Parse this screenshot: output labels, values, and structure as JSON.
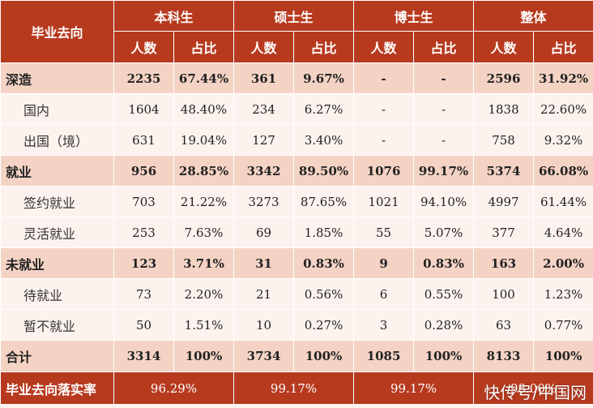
{
  "header": {
    "row_label": "毕业去向",
    "groups": [
      "本科生",
      "硕士生",
      "博士生",
      "整体"
    ],
    "sub": [
      "人数",
      "占比"
    ]
  },
  "rows": [
    {
      "label": "深造",
      "type": "cat",
      "cells": [
        "2235",
        "67.44%",
        "361",
        "9.67%",
        "-",
        "-",
        "2596",
        "31.92%"
      ]
    },
    {
      "label": "国内",
      "type": "sub",
      "cells": [
        "1604",
        "48.40%",
        "234",
        "6.27%",
        "-",
        "-",
        "1838",
        "22.60%"
      ]
    },
    {
      "label": "出国（境）",
      "type": "sub",
      "cells": [
        "631",
        "19.04%",
        "127",
        "3.40%",
        "-",
        "-",
        "758",
        "9.32%"
      ]
    },
    {
      "label": "就业",
      "type": "cat",
      "cells": [
        "956",
        "28.85%",
        "3342",
        "89.50%",
        "1076",
        "99.17%",
        "5374",
        "66.08%"
      ]
    },
    {
      "label": "签约就业",
      "type": "sub",
      "cells": [
        "703",
        "21.22%",
        "3273",
        "87.65%",
        "1021",
        "94.10%",
        "4997",
        "61.44%"
      ]
    },
    {
      "label": "灵活就业",
      "type": "sub",
      "cells": [
        "253",
        "7.63%",
        "69",
        "1.85%",
        "55",
        "5.07%",
        "377",
        "4.64%"
      ]
    },
    {
      "label": "未就业",
      "type": "cat",
      "cells": [
        "123",
        "3.71%",
        "31",
        "0.83%",
        "9",
        "0.83%",
        "163",
        "2.00%"
      ]
    },
    {
      "label": "待就业",
      "type": "sub",
      "cells": [
        "73",
        "2.20%",
        "21",
        "0.56%",
        "6",
        "0.55%",
        "100",
        "1.23%"
      ]
    },
    {
      "label": "暂不就业",
      "type": "sub",
      "cells": [
        "50",
        "1.51%",
        "10",
        "0.27%",
        "3",
        "0.28%",
        "63",
        "0.77%"
      ]
    },
    {
      "label": "合计",
      "type": "total",
      "cells": [
        "3314",
        "100%",
        "3734",
        "100%",
        "1085",
        "100%",
        "8133",
        "100%"
      ]
    }
  ],
  "footer": {
    "label": "毕业去向落实率",
    "values": [
      "96.29%",
      "99.17%",
      "99.17%",
      "98.00%"
    ]
  },
  "watermark": "快传号/中国网"
}
